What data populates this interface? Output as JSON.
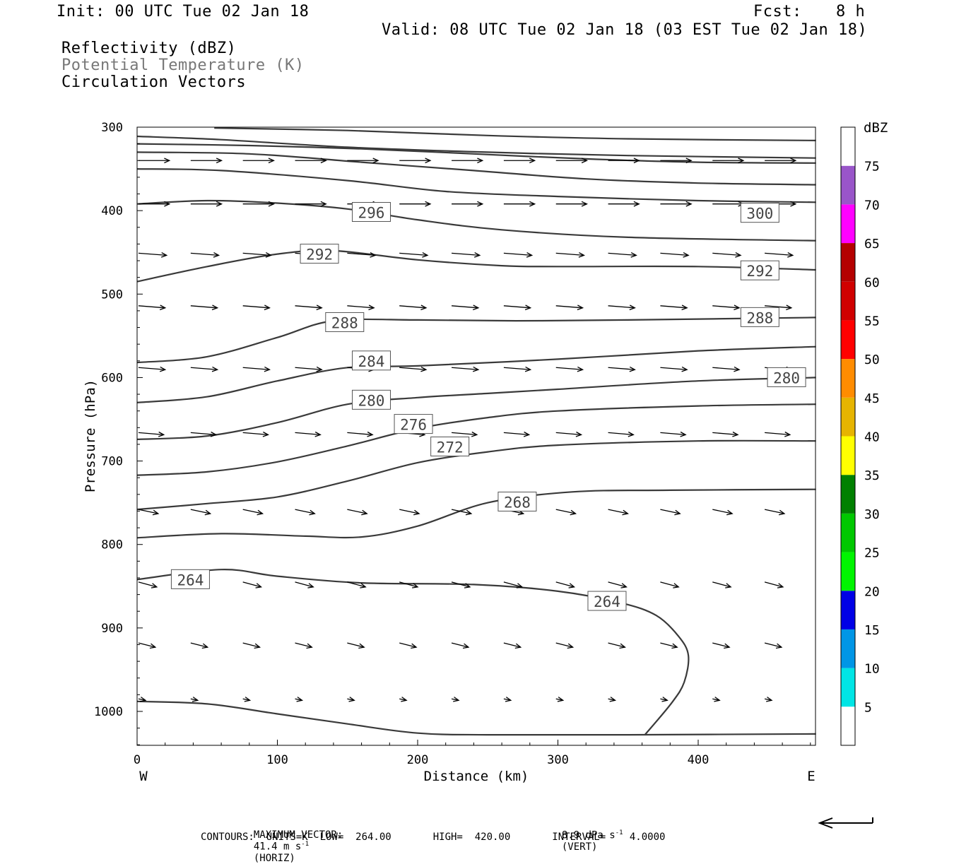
{
  "header": {
    "init": "Init: 00 UTC Tue 02 Jan 18",
    "fcst_label": "Fcst:",
    "fcst_value": "8 h",
    "valid": "Valid: 08 UTC Tue 02 Jan 18 (03 EST Tue 02 Jan 18)",
    "fields": [
      "Reflectivity (dBZ)",
      "Potential Temperature (K)",
      "Circulation Vectors"
    ]
  },
  "footer": {
    "max_vector_label": "MAXIMUM VECTOR:",
    "max_vector_horiz": "41.4 m s",
    "horiz_tag": "(HORIZ)",
    "max_vector_vert": "8.9 dPa s",
    "vert_tag": "(VERT)",
    "exponent": "-1",
    "contours": "CONTOURS:  UNITS=K  LOW=  264.00       HIGH=  420.00       INTERVAL=    4.0000"
  },
  "colors": {
    "contour": "#3a3a3a",
    "vector": "#000000",
    "frame": "#000000"
  },
  "chart_data": {
    "type": "cross-section",
    "xlabel": "Distance (km)",
    "ylabel": "Pressure (hPa)",
    "xlim": [
      0,
      484
    ],
    "ylim": [
      1040,
      300
    ],
    "x_ticks": [
      0,
      100,
      200,
      300,
      400
    ],
    "y_ticks": [
      300,
      400,
      500,
      600,
      700,
      800,
      900,
      1000
    ],
    "x_end_labels": {
      "left": "W",
      "right": "E"
    },
    "colorbar": {
      "unit": "dBZ",
      "levels": [
        5,
        10,
        15,
        20,
        25,
        30,
        35,
        40,
        45,
        50,
        55,
        60,
        65,
        70,
        75
      ],
      "colors": [
        "#ffffff",
        "#00e5e5",
        "#0096e6",
        "#0000e6",
        "#00f500",
        "#00c800",
        "#008000",
        "#ffff00",
        "#e6b400",
        "#ff8c00",
        "#ff0000",
        "#d00000",
        "#b40000",
        "#ff00ff",
        "#9955c9",
        "#ffffff"
      ]
    },
    "contours": [
      {
        "value": 264,
        "points": [
          [
            0,
            842
          ],
          [
            60,
            830
          ],
          [
            100,
            838
          ],
          [
            160,
            846
          ],
          [
            240,
            848
          ],
          [
            300,
            856
          ],
          [
            345,
            870
          ],
          [
            370,
            885
          ],
          [
            386,
            910
          ],
          [
            393,
            933
          ],
          [
            390,
            965
          ],
          [
            381,
            990
          ],
          [
            362,
            1028
          ]
        ],
        "labels": [
          [
            38,
            842
          ],
          [
            335,
            868
          ]
        ]
      },
      {
        "value": 268,
        "points": [
          [
            0,
            792
          ],
          [
            60,
            787
          ],
          [
            120,
            790
          ],
          [
            160,
            791
          ],
          [
            200,
            778
          ],
          [
            250,
            750
          ],
          [
            310,
            737
          ],
          [
            380,
            735
          ],
          [
            484,
            734
          ]
        ],
        "labels": [
          [
            271,
            749
          ]
        ]
      },
      {
        "value": 272,
        "points": [
          [
            0,
            758
          ],
          [
            50,
            751
          ],
          [
            100,
            743
          ],
          [
            150,
            724
          ],
          [
            200,
            702
          ],
          [
            250,
            689
          ],
          [
            300,
            681
          ],
          [
            400,
            676
          ],
          [
            484,
            676
          ]
        ],
        "labels": [
          [
            223,
            683
          ]
        ]
      },
      {
        "value": 276,
        "points": [
          [
            0,
            717
          ],
          [
            50,
            713
          ],
          [
            100,
            701
          ],
          [
            150,
            682
          ],
          [
            200,
            661
          ],
          [
            250,
            648
          ],
          [
            300,
            640
          ],
          [
            400,
            634
          ],
          [
            484,
            632
          ]
        ],
        "labels": [
          [
            197,
            656
          ]
        ]
      },
      {
        "value": 280,
        "points": [
          [
            0,
            674
          ],
          [
            50,
            670
          ],
          [
            100,
            654
          ],
          [
            150,
            632
          ],
          [
            200,
            624
          ],
          [
            250,
            619
          ],
          [
            300,
            614
          ],
          [
            400,
            604
          ],
          [
            484,
            600
          ]
        ],
        "labels": [
          [
            167,
            627
          ],
          [
            463,
            600
          ]
        ]
      },
      {
        "value": 284,
        "points": [
          [
            0,
            630
          ],
          [
            50,
            623
          ],
          [
            100,
            604
          ],
          [
            150,
            588
          ],
          [
            200,
            586
          ],
          [
            300,
            578
          ],
          [
            400,
            568
          ],
          [
            484,
            563
          ]
        ],
        "labels": [
          [
            167,
            580
          ]
        ]
      },
      {
        "value": 288,
        "points": [
          [
            0,
            582
          ],
          [
            50,
            575
          ],
          [
            100,
            552
          ],
          [
            140,
            532
          ],
          [
            200,
            531
          ],
          [
            270,
            532
          ],
          [
            350,
            531
          ],
          [
            484,
            528
          ]
        ],
        "labels": [
          [
            148,
            534
          ],
          [
            444,
            528
          ]
        ]
      },
      {
        "value": 292,
        "points": [
          [
            0,
            485
          ],
          [
            50,
            467
          ],
          [
            100,
            452
          ],
          [
            140,
            448
          ],
          [
            200,
            459
          ],
          [
            260,
            466
          ],
          [
            300,
            467
          ],
          [
            400,
            467
          ],
          [
            484,
            471
          ]
        ],
        "labels": [
          [
            130,
            452
          ],
          [
            444,
            472
          ]
        ]
      },
      {
        "value": 296,
        "points": [
          [
            0,
            392
          ],
          [
            50,
            388
          ],
          [
            100,
            391
          ],
          [
            150,
            398
          ],
          [
            200,
            411
          ],
          [
            260,
            423
          ],
          [
            350,
            432
          ],
          [
            484,
            436
          ]
        ],
        "labels": [
          [
            167,
            402
          ]
        ]
      },
      {
        "value": 300,
        "points": [
          [
            0,
            350
          ],
          [
            60,
            352
          ],
          [
            150,
            364
          ],
          [
            220,
            377
          ],
          [
            300,
            383
          ],
          [
            400,
            388
          ],
          [
            484,
            390
          ]
        ],
        "labels": [
          [
            444,
            403
          ]
        ]
      },
      {
        "value": 304,
        "points": [
          [
            0,
            330
          ],
          [
            80,
            332
          ],
          [
            160,
            342
          ],
          [
            240,
            352
          ],
          [
            320,
            362
          ],
          [
            400,
            367
          ],
          [
            484,
            369
          ]
        ],
        "labels": []
      },
      {
        "value": 308,
        "points": [
          [
            0,
            320
          ],
          [
            80,
            322
          ],
          [
            160,
            326
          ],
          [
            240,
            332
          ],
          [
            320,
            338
          ],
          [
            400,
            342
          ],
          [
            484,
            343
          ]
        ],
        "labels": []
      },
      {
        "value": 312,
        "points": [
          [
            0,
            311
          ],
          [
            60,
            315
          ],
          [
            150,
            324
          ],
          [
            250,
            330
          ],
          [
            350,
            334
          ],
          [
            484,
            337
          ]
        ],
        "labels": []
      },
      {
        "value": 316,
        "points": [
          [
            55,
            301
          ],
          [
            150,
            304
          ],
          [
            250,
            310
          ],
          [
            350,
            314
          ],
          [
            484,
            316
          ]
        ],
        "labels": []
      }
    ],
    "surface": {
      "points": [
        [
          0,
          988
        ],
        [
          50,
          991
        ],
        [
          100,
          1003
        ],
        [
          150,
          1015
        ],
        [
          200,
          1026
        ],
        [
          250,
          1028
        ],
        [
          350,
          1028
        ],
        [
          484,
          1027
        ]
      ]
    },
    "vector_rows": [
      {
        "p": 340,
        "dx": 22,
        "dp": 0,
        "x0": 0
      },
      {
        "p": 392,
        "dx": 22,
        "dp": 0,
        "x0": 0
      },
      {
        "p": 451,
        "dx": 20,
        "dp": 1.5,
        "x0": 0
      },
      {
        "p": 514,
        "dx": 19,
        "dp": 1.5,
        "x0": 0
      },
      {
        "p": 588,
        "dx": 19,
        "dp": 1.5,
        "x0": 0
      },
      {
        "p": 666,
        "dx": 18,
        "dp": 1.5,
        "x0": 0
      },
      {
        "p": 758,
        "dx": 14,
        "dp": 3,
        "x0": 0
      },
      {
        "p": 845,
        "dx": 13,
        "dp": 3.5,
        "x0": 0
      },
      {
        "p": 918,
        "dx": 12,
        "dp": 3,
        "x0": 0
      },
      {
        "p": 985,
        "dx": 5,
        "dp": 1,
        "x0": 0
      }
    ]
  }
}
